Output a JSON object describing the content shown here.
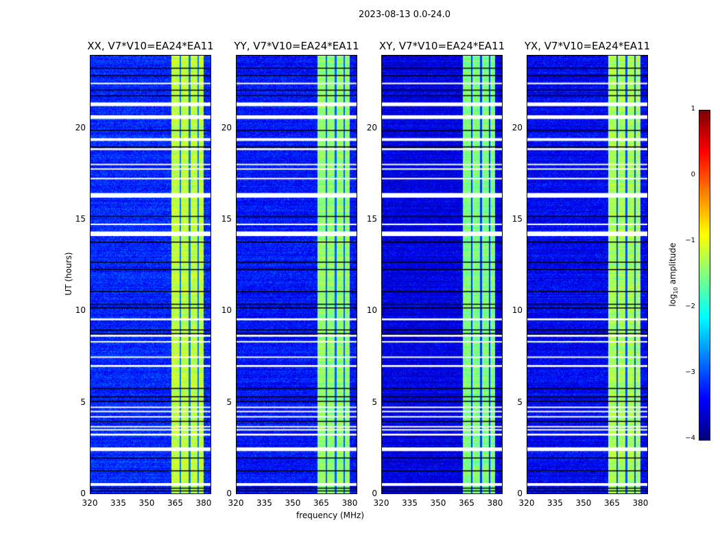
{
  "chart_data": {
    "type": "heatmap",
    "title": "2023-08-13 0.0-24.0",
    "xlabel": "frequency (MHz)",
    "ylabel": "UT (hours)",
    "xlim": [
      320,
      384
    ],
    "ylim": [
      0,
      24
    ],
    "xticks": [
      "320",
      "335",
      "350",
      "365",
      "380"
    ],
    "xtick_values": [
      320,
      335,
      350,
      365,
      380
    ],
    "yticks": [
      "0",
      "5",
      "10",
      "15",
      "20"
    ],
    "ytick_values": [
      0,
      5,
      10,
      15,
      20
    ],
    "panels": [
      {
        "title": "XX, V7*V10=EA24*EA11",
        "background": -3.2,
        "band": -1.2
      },
      {
        "title": "YY, V7*V10=EA24*EA11",
        "background": -3.3,
        "band": -1.4
      },
      {
        "title": "XY, V7*V10=EA24*EA11",
        "background": -3.5,
        "band": -1.5
      },
      {
        "title": "YX, V7*V10=EA24*EA11",
        "background": -3.4,
        "band": -1.3
      }
    ],
    "rfi_band_mhz": [
      363,
      380
    ],
    "band_gaps_mhz": [
      367.5,
      372.5,
      377
    ],
    "flagged_hours": [
      [
        0.45,
        0.6
      ],
      [
        2.35,
        2.55
      ],
      [
        3.2,
        3.3
      ],
      [
        3.5,
        3.55
      ],
      [
        3.65,
        3.72
      ],
      [
        4.2,
        4.26
      ],
      [
        4.5,
        4.55
      ],
      [
        4.72,
        4.78
      ],
      [
        6.95,
        7.05
      ],
      [
        7.45,
        7.52
      ],
      [
        8.3,
        8.36
      ],
      [
        8.6,
        8.7
      ],
      [
        9.5,
        9.6
      ],
      [
        14.1,
        14.35
      ],
      [
        14.7,
        14.78
      ],
      [
        16.2,
        16.45
      ],
      [
        17.2,
        17.28
      ],
      [
        17.75,
        17.8
      ],
      [
        18.0,
        18.05
      ],
      [
        18.8,
        18.9
      ],
      [
        19.3,
        19.45
      ],
      [
        20.5,
        20.7
      ],
      [
        21.2,
        21.4
      ],
      [
        22.4,
        22.48
      ]
    ],
    "dark_lines_hours": [
      0.2,
      0.35,
      1.3,
      2.0,
      4.0,
      5.1,
      5.35,
      5.8,
      8.8,
      9.0,
      10.2,
      10.4,
      11.1,
      12.3,
      12.7,
      13.8,
      15.2,
      19.0,
      19.9,
      21.8,
      22.1,
      22.9,
      23.3
    ],
    "colorbar": {
      "label": "log10 amplitude",
      "range": [
        -4,
        1
      ],
      "ticks": [
        "1",
        "0",
        "−1",
        "−2",
        "−3",
        "−4"
      ],
      "tick_values": [
        1,
        0,
        -1,
        -2,
        -3,
        -4
      ],
      "colormap": "jet"
    }
  }
}
